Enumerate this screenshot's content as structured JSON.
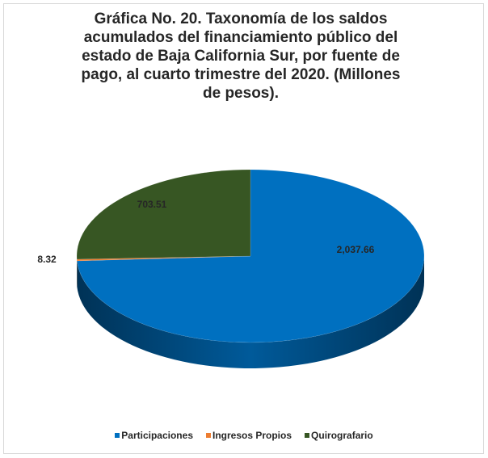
{
  "chart_data": {
    "type": "pie",
    "title_lines": [
      "Gráfica No. 20. Taxonomía de los saldos",
      "acumulados del financiamiento público del",
      "estado de Baja California Sur, por fuente de",
      "pago, al cuarto trimestre del 2020. (Millones",
      "de pesos)."
    ],
    "categories": [
      "Participaciones",
      "Ingresos Propios",
      "Quirografario"
    ],
    "values": [
      2037.66,
      8.32,
      703.51
    ],
    "data_labels": [
      "2,037.66",
      "8.32",
      "703.51"
    ],
    "colors": [
      "#0070C0",
      "#ED7D31",
      "#375623"
    ],
    "legend_position": "bottom"
  }
}
